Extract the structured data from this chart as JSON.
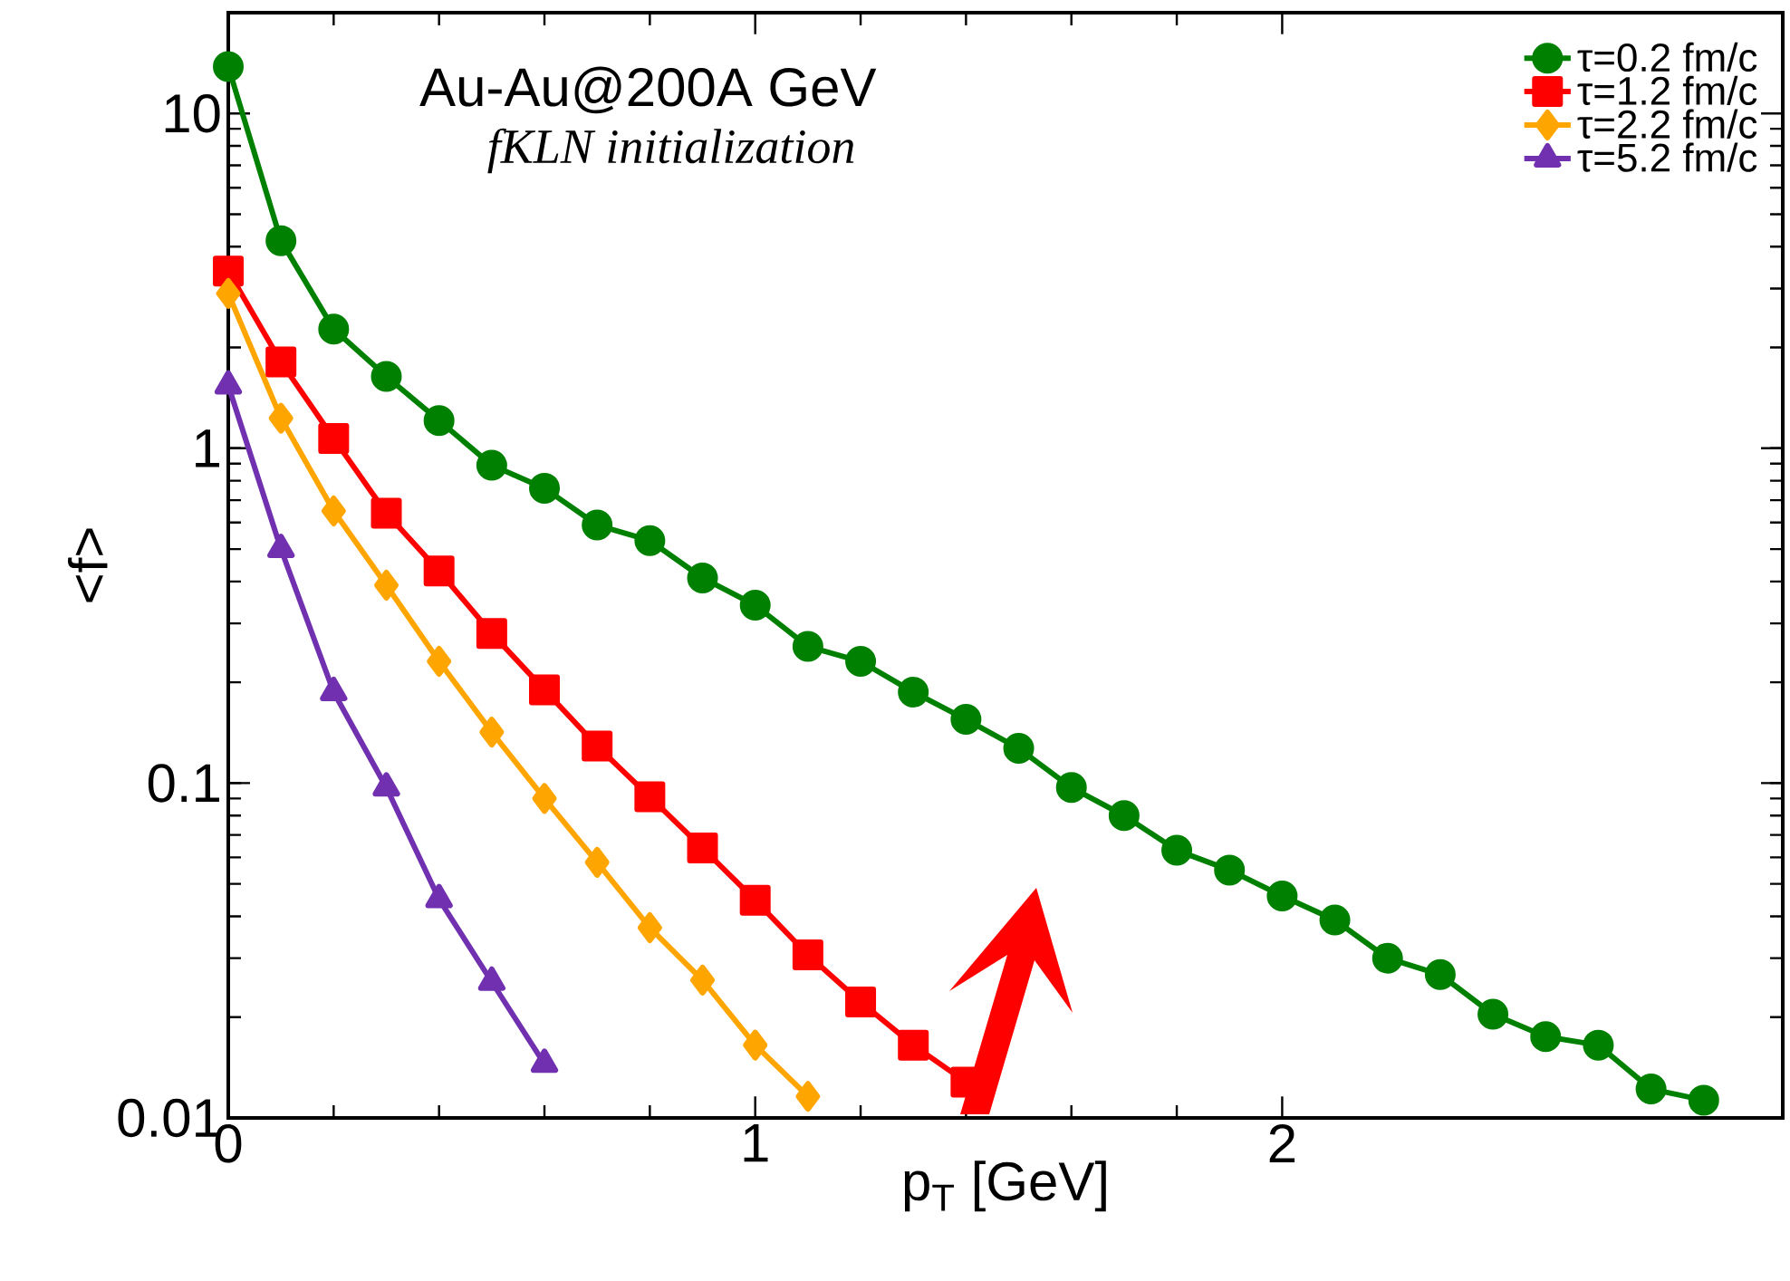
{
  "chart_data": {
    "type": "line",
    "title": "Au-Au@200A GeV",
    "subtitle": "fKLN initialization",
    "xlabel": "p$_{T}$ [GeV]",
    "ylabel": "<f>",
    "log": "y",
    "xlim": [
      0,
      2.95
    ],
    "ylim": [
      0.01,
      20
    ],
    "xticks": [
      0,
      1,
      2
    ],
    "yticks": [
      0.01,
      0.1,
      1,
      10
    ],
    "legend": "top right",
    "line_style": "solid",
    "series": [
      {
        "name": "τ=0.2 fm/c",
        "color": "#008000",
        "marker": "circle",
        "x": [
          0,
          0.1,
          0.2,
          0.3,
          0.4,
          0.5,
          0.6,
          0.7,
          0.8,
          0.9,
          1.0,
          1.1,
          1.2,
          1.3,
          1.4,
          1.5,
          1.6,
          1.7,
          1.8,
          1.9,
          2.0,
          2.1,
          2.2,
          2.3,
          2.4,
          2.5,
          2.6,
          2.7,
          2.8
        ],
        "values": [
          13.8,
          4.17,
          2.27,
          1.64,
          1.21,
          0.89,
          0.76,
          0.59,
          0.53,
          0.41,
          0.34,
          0.256,
          0.231,
          0.187,
          0.155,
          0.127,
          0.097,
          0.08,
          0.063,
          0.055,
          0.046,
          0.039,
          0.03,
          0.0268,
          0.0204,
          0.0175,
          0.0165,
          0.0122,
          0.0113
        ]
      },
      {
        "name": "τ=1.2 fm/c",
        "color": "#ff0000",
        "marker": "square",
        "x": [
          0,
          0.1,
          0.2,
          0.3,
          0.4,
          0.5,
          0.6,
          0.7,
          0.8,
          0.9,
          1.0,
          1.1,
          1.2,
          1.3,
          1.4
        ],
        "values": [
          3.38,
          1.81,
          1.07,
          0.64,
          0.43,
          0.28,
          0.19,
          0.129,
          0.091,
          0.064,
          0.0447,
          0.0307,
          0.0222,
          0.0165,
          0.0128
        ]
      },
      {
        "name": "τ=2.2 fm/c",
        "color": "#ffa500",
        "marker": "diamond",
        "x": [
          0,
          0.1,
          0.2,
          0.3,
          0.4,
          0.5,
          0.6,
          0.7,
          0.8,
          0.9,
          1.0,
          1.1
        ],
        "values": [
          2.9,
          1.23,
          0.65,
          0.39,
          0.231,
          0.142,
          0.09,
          0.058,
          0.037,
          0.0258,
          0.0165,
          0.0116
        ]
      },
      {
        "name": "τ=5.2 fm/c",
        "color": "#7030b0",
        "marker": "triangle",
        "x": [
          0,
          0.1,
          0.2,
          0.3,
          0.4,
          0.5,
          0.6
        ],
        "values": [
          1.54,
          0.5,
          0.187,
          0.097,
          0.045,
          0.0255,
          0.0145
        ]
      }
    ]
  }
}
